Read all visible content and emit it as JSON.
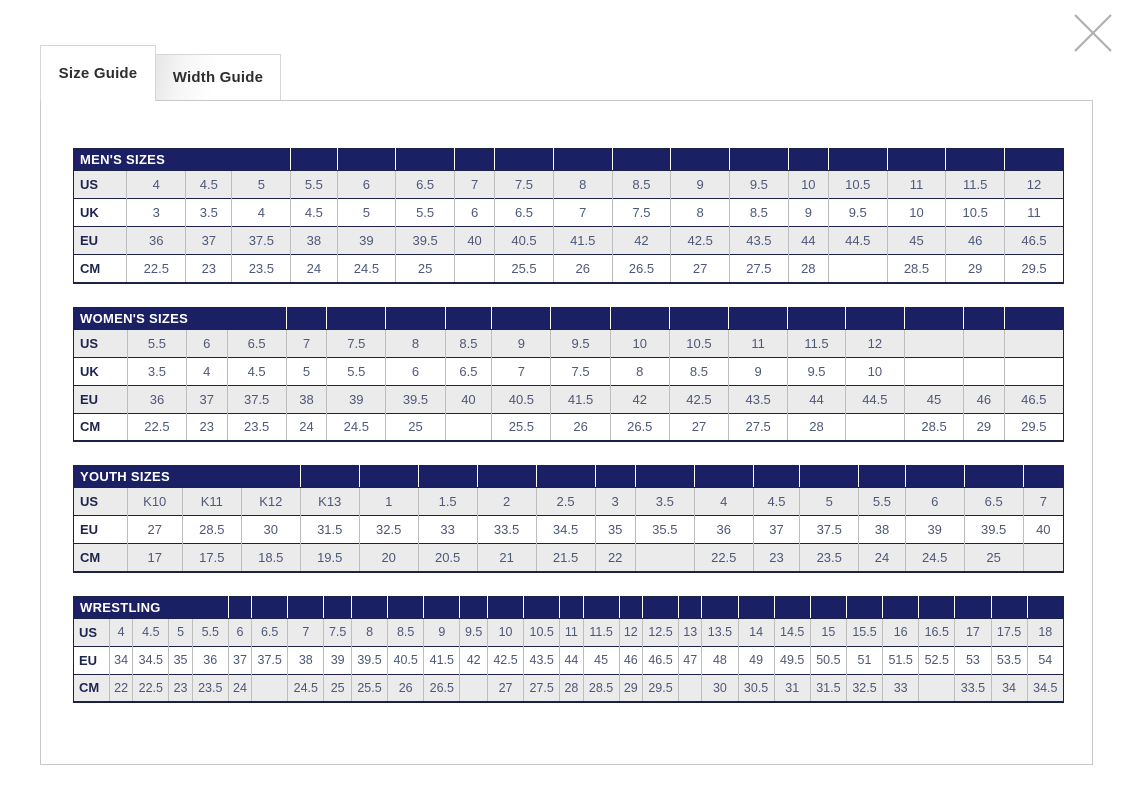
{
  "modal": {
    "tabs": [
      {
        "id": "size-guide",
        "label": "Size Guide",
        "active": true
      },
      {
        "id": "width-guide",
        "label": "Width Guide",
        "active": false
      }
    ],
    "close_icon": "close-x"
  },
  "colors": {
    "header_navy": "#1b2064",
    "row_stripe_gray": "#ebebeb",
    "value_text": "#4e5878",
    "label_navy": "#1b2550",
    "dark_border": "#1c2147",
    "light_border": "#bdbdbd",
    "tab_border": "#d6d6d6",
    "panel_border": "#c9c9c9",
    "close_gray": "#b0b0b0"
  },
  "tables": [
    {
      "name": "mens-sizes",
      "title": "MEN'S SIZES",
      "title_colspan": 4,
      "rows": [
        {
          "label": "US",
          "values": [
            "4",
            "4.5",
            "5",
            "5.5",
            "6",
            "6.5",
            "7",
            "7.5",
            "8",
            "8.5",
            "9",
            "9.5",
            "10",
            "10.5",
            "11",
            "11.5",
            "12"
          ]
        },
        {
          "label": "UK",
          "values": [
            "3",
            "3.5",
            "4",
            "4.5",
            "5",
            "5.5",
            "6",
            "6.5",
            "7",
            "7.5",
            "8",
            "8.5",
            "9",
            "9.5",
            "10",
            "10.5",
            "11"
          ]
        },
        {
          "label": "EU",
          "values": [
            "36",
            "37",
            "37.5",
            "38",
            "39",
            "39.5",
            "40",
            "40.5",
            "41.5",
            "42",
            "42.5",
            "43.5",
            "44",
            "44.5",
            "45",
            "46",
            "46.5"
          ]
        },
        {
          "label": "CM",
          "values": [
            "22.5",
            "23",
            "23.5",
            "24",
            "24.5",
            "25",
            "",
            "25.5",
            "26",
            "26.5",
            "27",
            "27.5",
            "28",
            "",
            "28.5",
            "29",
            "29.5"
          ]
        }
      ]
    },
    {
      "name": "womens-sizes",
      "title": "WOMEN'S SIZES",
      "title_colspan": 4,
      "rows": [
        {
          "label": "US",
          "values": [
            "5.5",
            "6",
            "6.5",
            "7",
            "7.5",
            "8",
            "8.5",
            "9",
            "9.5",
            "10",
            "10.5",
            "11",
            "11.5",
            "12",
            "",
            "",
            ""
          ]
        },
        {
          "label": "UK",
          "values": [
            "3.5",
            "4",
            "4.5",
            "5",
            "5.5",
            "6",
            "6.5",
            "7",
            "7.5",
            "8",
            "8.5",
            "9",
            "9.5",
            "10",
            "",
            "",
            ""
          ]
        },
        {
          "label": "EU",
          "values": [
            "36",
            "37",
            "37.5",
            "38",
            "39",
            "39.5",
            "40",
            "40.5",
            "41.5",
            "42",
            "42.5",
            "43.5",
            "44",
            "44.5",
            "45",
            "46",
            "46.5"
          ]
        },
        {
          "label": "CM",
          "values": [
            "22.5",
            "23",
            "23.5",
            "24",
            "24.5",
            "25",
            "",
            "25.5",
            "26",
            "26.5",
            "27",
            "27.5",
            "28",
            "",
            "28.5",
            "29",
            "29.5"
          ]
        }
      ]
    },
    {
      "name": "youth-sizes",
      "title": "YOUTH SIZES",
      "title_colspan": 4,
      "rows": [
        {
          "label": "US",
          "values": [
            "K10",
            "K11",
            "K12",
            "K13",
            "1",
            "1.5",
            "2",
            "2.5",
            "3",
            "3.5",
            "4",
            "4.5",
            "5",
            "5.5",
            "6",
            "6.5",
            "7"
          ]
        },
        {
          "label": "EU",
          "values": [
            "27",
            "28.5",
            "30",
            "31.5",
            "32.5",
            "33",
            "33.5",
            "34.5",
            "35",
            "35.5",
            "36",
            "37",
            "37.5",
            "38",
            "39",
            "39.5",
            "40"
          ]
        },
        {
          "label": "CM",
          "values": [
            "17",
            "17.5",
            "18.5",
            "19.5",
            "20",
            "20.5",
            "21",
            "21.5",
            "22",
            "",
            "22.5",
            "23",
            "23.5",
            "24",
            "24.5",
            "25",
            ""
          ]
        }
      ]
    },
    {
      "name": "wrestling",
      "title": "WRESTLING",
      "title_colspan": 5,
      "rows": [
        {
          "label": "US",
          "values": [
            "4",
            "4.5",
            "5",
            "5.5",
            "6",
            "6.5",
            "7",
            "7.5",
            "8",
            "8.5",
            "9",
            "9.5",
            "10",
            "10.5",
            "11",
            "11.5",
            "12",
            "12.5",
            "13",
            "13.5",
            "14",
            "14.5",
            "15",
            "15.5",
            "16",
            "16.5",
            "17",
            "17.5",
            "18"
          ]
        },
        {
          "label": "EU",
          "values": [
            "34",
            "34.5",
            "35",
            "36",
            "37",
            "37.5",
            "38",
            "39",
            "39.5",
            "40.5",
            "41.5",
            "42",
            "42.5",
            "43.5",
            "44",
            "45",
            "46",
            "46.5",
            "47",
            "48",
            "49",
            "49.5",
            "50.5",
            "51",
            "51.5",
            "52.5",
            "53",
            "53.5",
            "54"
          ]
        },
        {
          "label": "CM",
          "values": [
            "22",
            "22.5",
            "23",
            "23.5",
            "24",
            "",
            "24.5",
            "25",
            "25.5",
            "26",
            "26.5",
            "",
            "27",
            "27.5",
            "28",
            "28.5",
            "29",
            "29.5",
            "",
            "30",
            "30.5",
            "31",
            "31.5",
            "32.5",
            "33",
            "",
            "33.5",
            "34",
            "34.5"
          ]
        }
      ]
    }
  ]
}
